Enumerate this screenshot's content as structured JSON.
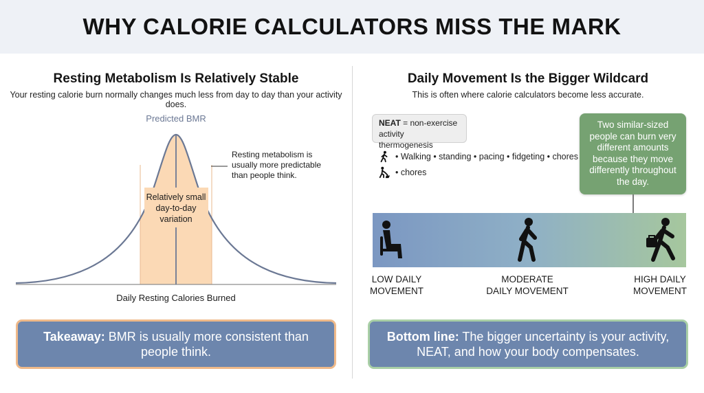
{
  "title": "WHY CALORIE CALCULATORS MISS THE MARK",
  "left": {
    "heading": "Resting Metabolism Is Relatively Stable",
    "subtitle": "Your resting calorie burn normally changes much less from day to day than your activity does.",
    "curve": {
      "peak_label": "Predicted BMR",
      "band_label": [
        "Relatively small",
        "day-to-day",
        "variation"
      ],
      "annotation": [
        "Resting metabolism is",
        "usually more predictable",
        "than people think."
      ],
      "x_axis_label": "Daily Resting Calories Burned",
      "colors": {
        "band": "#fbd9b5",
        "band_edge": "#e9b88e",
        "curve": "#6b7894",
        "axis": "#8d8d8d"
      }
    },
    "takeaway": {
      "lead": "Takeaway:",
      "text": " BMR is usually more consistent than people think."
    }
  },
  "right": {
    "heading": "Daily Movement Is the Bigger Wildcard",
    "subtitle": "This is often where calorie calculators become less accurate.",
    "neat": {
      "abbr": "NEAT",
      "definition": " = non-exercise activity thermogenesis"
    },
    "activities": [
      {
        "icon": "walking-person-icon",
        "text": "• Walking • standing • pacing • fidgeting • chores"
      },
      {
        "icon": "shoveling-person-icon",
        "text": "• chores"
      }
    ],
    "callout": "Two similar-sized people can burn very different amounts because they move differently throughout the day.",
    "scale": [
      {
        "icon": "sitting-person-icon",
        "label": [
          "LOW DAILY",
          "MOVEMENT"
        ]
      },
      {
        "icon": "walking-person-icon",
        "label": [
          "MODERATE",
          "DAILY MOVEMENT"
        ]
      },
      {
        "icon": "commuter-with-briefcase-icon",
        "label": [
          "HIGH DAILY",
          "MOVEMENT"
        ]
      }
    ],
    "colors": {
      "gradient_start": "#7b97c2",
      "gradient_end": "#a6c79d",
      "callout": "#76a272"
    },
    "takeaway": {
      "lead": "Bottom line:",
      "text": " The bigger uncertainty is your activity, NEAT, and how your body compensates."
    }
  },
  "colors": {
    "header_bg": "#eef1f6",
    "takeaway_bg": "#6d86ad",
    "left_border": "#efb989",
    "right_border": "#a9cfa6"
  }
}
